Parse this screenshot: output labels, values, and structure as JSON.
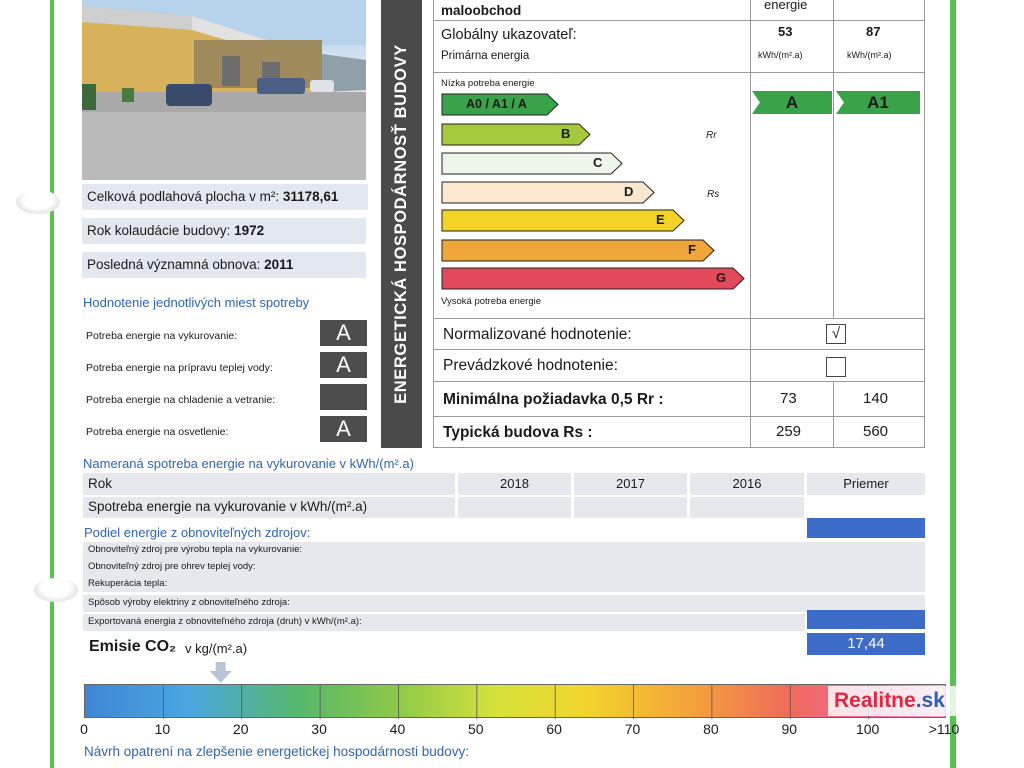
{
  "left": {
    "info": [
      {
        "label": "Celková podlahová plocha v m²: ",
        "value": "31178,61"
      },
      {
        "label": "Rok kolaudácie budovy: ",
        "value": "1972"
      },
      {
        "label": "Posledná významná obnova: ",
        "value": "2011"
      }
    ],
    "ratings_title": "Hodnotenie jednotlivých miest spotreby",
    "ratings": [
      {
        "label": "Potreba energie na vykurovanie:",
        "grade": "A"
      },
      {
        "label": "Potreba energie na prípravu teplej vody:",
        "grade": "A"
      },
      {
        "label": "Potreba energie na chladenie a vetranie:",
        "grade": ""
      },
      {
        "label": "Potreba energie na osvetlenie:",
        "grade": "A"
      }
    ]
  },
  "vertical_title": "ENERGETICKÁ HOSPODÁRNOSŤ BUDOVY",
  "table": {
    "category": "maloobchod",
    "header_left_partial": "energie",
    "indicator_label": "Globálny ukazovateľ:",
    "primary_label": "Primárna energia",
    "values": [
      "53",
      "87"
    ],
    "units": [
      "kWh/(m².a)",
      "kWh/(m².a)"
    ],
    "low_label": "Nízka potreba energie",
    "high_label": "Vysoká potreba energie",
    "classes": [
      "A0 / A1 / A",
      "B",
      "C",
      "D",
      "E",
      "F",
      "G"
    ],
    "class_colors": [
      "#3aa349",
      "#a5c93c",
      "#eef6ec",
      "#fbe6cf",
      "#f4d327",
      "#f0a63a",
      "#e2495a"
    ],
    "rr_label": "Rr",
    "rs_label": "Rs",
    "result_grades": [
      "A",
      "A1"
    ],
    "normalized_label": "Normalizované hodnotenie:",
    "normalized_check": "√",
    "operational_label": "Prevádzkové hodnotenie:",
    "min_req_label": "Minimálna požiadavka 0,5 Rr :",
    "min_req_values": [
      "73",
      "140"
    ],
    "typical_label": "Typická budova Rs :",
    "typical_values": [
      "259",
      "560"
    ]
  },
  "measured": {
    "title": "Nameraná spotreba energie na vykurovanie v kWh/(m².a)",
    "row_year_label": "Rok",
    "years": [
      "2018",
      "2017",
      "2016"
    ],
    "average_label": "Priemer",
    "row_consumption_label": "Spotreba energie na vykurovanie v kWh/(m².a)"
  },
  "renewables": {
    "title": "Podiel energie z obnoviteľných zdrojov:",
    "rows": [
      "Obnoviteľný zdroj pre výrobu tepla na vykurovanie:",
      "Obnoviteľný zdroj pre ohrev teplej vody:",
      "Rekuperácia tepla:",
      "Spôsob výroby elektriny z obnoviteľného zdroja:",
      "Exportovaná energia z obnoviteľného zdroja (druh) v kWh/(m².a):"
    ]
  },
  "emissions": {
    "label": "Emisie CO₂",
    "unit": "v kg/(m².a)",
    "value": "17,44",
    "scale_ticks": [
      "0",
      "10",
      "20",
      "30",
      "40",
      "50",
      "60",
      "70",
      "80",
      "90",
      "100",
      ">110"
    ],
    "marker_value": 17.44
  },
  "proposal_title": "Návrh opatrení na zlepšenie energetickej hospodárnosti budovy:",
  "watermark": {
    "brand": "Realitne",
    "tld": ".sk"
  },
  "colors": {
    "accent_green": "#58c24e",
    "label_blue": "#2f66b9",
    "value_blue": "#3d6cc8",
    "grade_green": "#3aa349"
  }
}
